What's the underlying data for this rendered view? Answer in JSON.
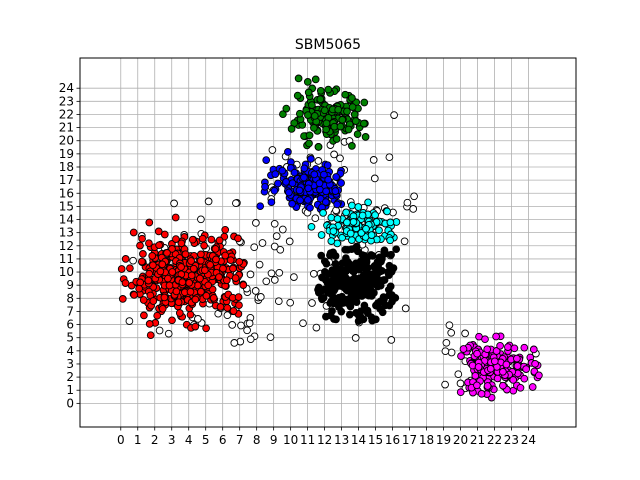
{
  "chart_data": {
    "type": "scatter",
    "title": "SBM5065",
    "xlabel": "",
    "ylabel": "",
    "xlim": [
      -2.4,
      26.8
    ],
    "ylim": [
      -1.8,
      26.3
    ],
    "xticks": [
      0,
      1,
      2,
      3,
      4,
      5,
      6,
      7,
      8,
      9,
      10,
      11,
      12,
      13,
      14,
      15,
      16,
      17,
      18,
      19,
      20,
      21,
      22,
      23,
      24
    ],
    "yticks": [
      0,
      1,
      2,
      3,
      4,
      5,
      6,
      7,
      8,
      9,
      10,
      11,
      12,
      13,
      14,
      15,
      16,
      17,
      18,
      19,
      20,
      21,
      22,
      23,
      24
    ],
    "grid": true,
    "colors": {
      "red": "#ff0000",
      "green": "#008000",
      "blue": "#0000ff",
      "cyan": "#00ffff",
      "black": "#000000",
      "magenta": "#ff00ff",
      "unassigned": "#ffffff"
    },
    "clusters": [
      {
        "color": "red",
        "center": [
          4.0,
          9.7
        ],
        "spread": [
          1.9,
          1.5
        ],
        "box": [
          0.0,
          7.3,
          4.8,
          14.6
        ],
        "count": 420
      },
      {
        "color": "green",
        "center": [
          12.1,
          21.6
        ],
        "spread": [
          1.1,
          1.1
        ],
        "box": [
          9.5,
          14.6,
          19.5,
          25.0
        ],
        "count": 150
      },
      {
        "color": "blue",
        "center": [
          11.3,
          16.6
        ],
        "spread": [
          1.3,
          0.9
        ],
        "box": [
          8.2,
          13.0,
          14.5,
          19.5
        ],
        "count": 170
      },
      {
        "color": "cyan",
        "center": [
          14.2,
          13.4
        ],
        "spread": [
          1.1,
          0.7
        ],
        "box": [
          10.5,
          16.5,
          11.6,
          15.6
        ],
        "count": 130
      },
      {
        "color": "black",
        "center": [
          13.8,
          9.0
        ],
        "spread": [
          1.3,
          1.3
        ],
        "box": [
          11.5,
          16.3,
          5.9,
          12.1
        ],
        "count": 260
      },
      {
        "color": "magenta",
        "center": [
          22.0,
          2.7
        ],
        "spread": [
          1.2,
          1.0
        ],
        "box": [
          20.0,
          24.7,
          0.0,
          5.6
        ],
        "count": 180
      },
      {
        "color": "unassigned",
        "center": [
          6.5,
          8.5
        ],
        "spread": [
          3.8,
          3.6
        ],
        "box": [
          0.0,
          9.6,
          4.3,
          16.6
        ],
        "count": 90
      },
      {
        "color": "unassigned",
        "center": [
          12.5,
          13.0
        ],
        "spread": [
          3.0,
          5.0
        ],
        "box": [
          8.5,
          17.4,
          4.6,
          25.2
        ],
        "count": 80
      },
      {
        "color": "unassigned",
        "center": [
          21.5,
          3.0
        ],
        "spread": [
          2.2,
          1.5
        ],
        "box": [
          19.0,
          24.5,
          1.0,
          6.1
        ],
        "count": 25
      }
    ]
  }
}
